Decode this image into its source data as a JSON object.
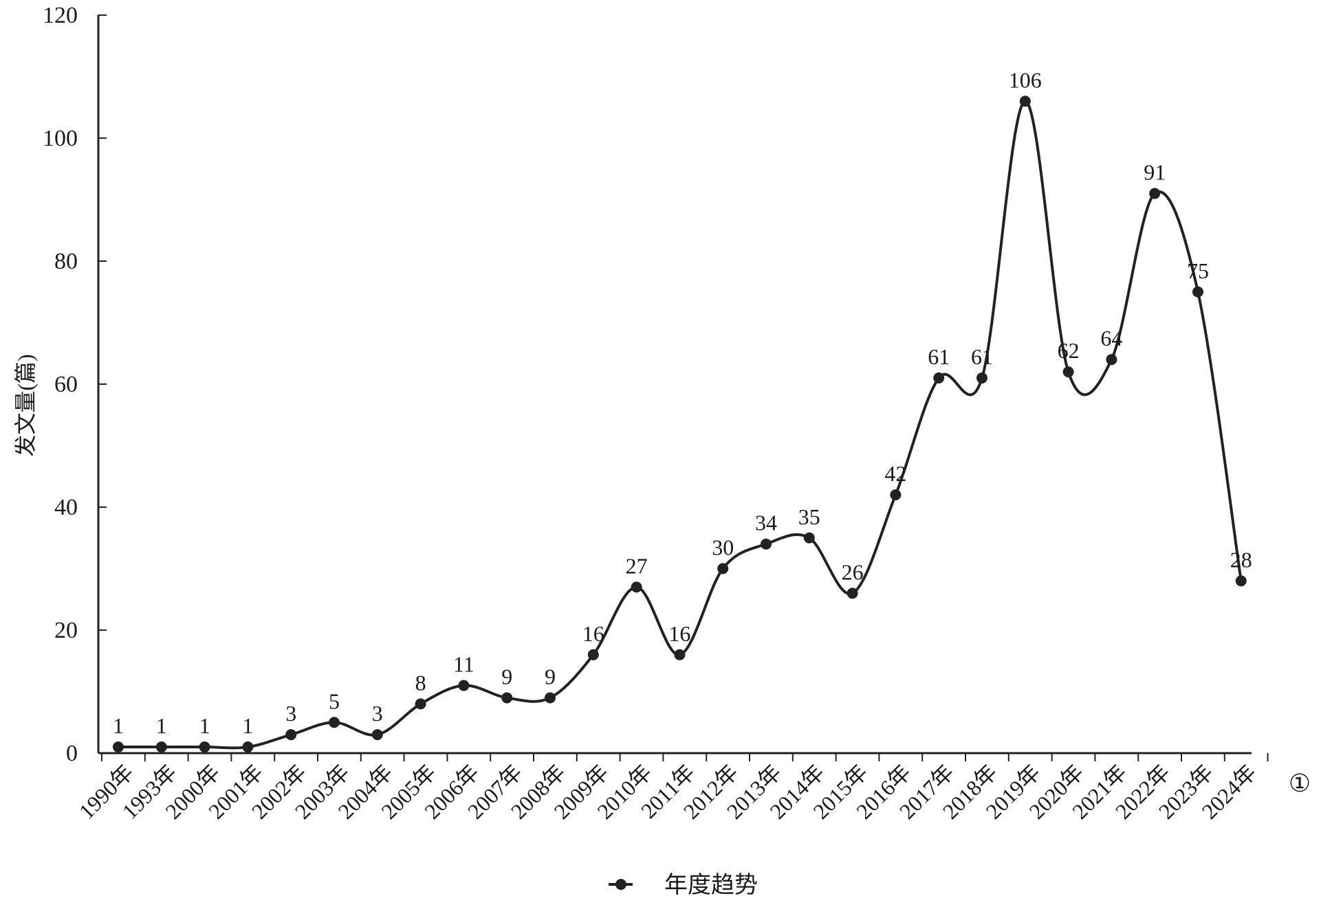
{
  "chart_data": {
    "type": "line",
    "categories": [
      "1990年",
      "1993年",
      "2000年",
      "2001年",
      "2002年",
      "2003年",
      "2004年",
      "2005年",
      "2006年",
      "2007年",
      "2008年",
      "2009年",
      "2010年",
      "2011年",
      "2012年",
      "2013年",
      "2014年",
      "2015年",
      "2016年",
      "2017年",
      "2018年",
      "2019年",
      "2020年",
      "2021年",
      "2022年",
      "2023年",
      "2024年"
    ],
    "series": [
      {
        "name": "年度趋势",
        "values": [
          1,
          1,
          1,
          1,
          3,
          5,
          3,
          8,
          11,
          9,
          9,
          16,
          27,
          16,
          30,
          34,
          35,
          26,
          42,
          61,
          61,
          106,
          62,
          64,
          91,
          75,
          28
        ],
        "value_labels": [
          "1",
          "1",
          "1",
          "1",
          "3",
          "5",
          "3",
          "8",
          "11",
          "9",
          "9",
          "16",
          "27",
          "16",
          "30",
          "34",
          "35",
          "26",
          "42",
          "61",
          "61",
          "106",
          "62",
          "64",
          "91",
          "75",
          "28"
        ]
      }
    ],
    "title": "",
    "xlabel": "",
    "ylabel": "发文量(篇)",
    "ylim": [
      0,
      120
    ],
    "yticks": [
      "0",
      "20",
      "40",
      "60",
      "80",
      "100",
      "120"
    ],
    "grid": false,
    "legend": "bottom-center",
    "line_color": "#222222",
    "smooth": true
  },
  "panel_mark": "①"
}
